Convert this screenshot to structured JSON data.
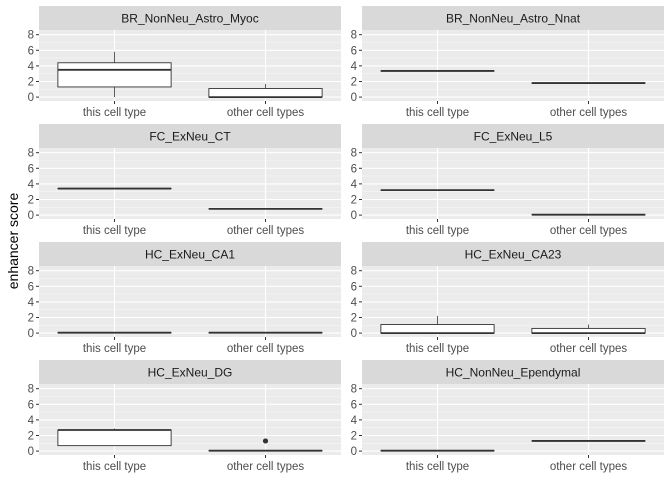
{
  "chart_data": {
    "type": "boxplot",
    "ylabel": "enhancer score",
    "xlabel": "",
    "categories": [
      "this cell type",
      "other cell types"
    ],
    "ylim": [
      -0.5,
      8.6
    ],
    "yticks": [
      0,
      2,
      4,
      6,
      8
    ],
    "grid": true,
    "facet_layout": "4 rows x 2 columns",
    "panels": [
      {
        "title": "BR_NonNeu_Astro_Myoc",
        "boxes": [
          {
            "category": "this cell type",
            "min": 0.0,
            "q1": 1.3,
            "median": 3.5,
            "q3": 4.4,
            "max": 5.8,
            "outliers": []
          },
          {
            "category": "other cell types",
            "min": 0.0,
            "q1": 0.0,
            "median": 0.0,
            "q3": 1.1,
            "max": 1.7,
            "outliers": []
          }
        ]
      },
      {
        "title": "BR_NonNeu_Astro_Nnat",
        "boxes": [
          {
            "category": "this cell type",
            "min": 3.35,
            "q1": 3.35,
            "median": 3.35,
            "q3": 3.35,
            "max": 3.35,
            "outliers": []
          },
          {
            "category": "other cell types",
            "min": 1.8,
            "q1": 1.8,
            "median": 1.8,
            "q3": 1.8,
            "max": 1.8,
            "outliers": []
          }
        ]
      },
      {
        "title": "FC_ExNeu_CT",
        "boxes": [
          {
            "category": "this cell type",
            "min": 3.4,
            "q1": 3.4,
            "median": 3.4,
            "q3": 3.4,
            "max": 3.4,
            "outliers": []
          },
          {
            "category": "other cell types",
            "min": 0.8,
            "q1": 0.8,
            "median": 0.8,
            "q3": 0.8,
            "max": 0.8,
            "outliers": []
          }
        ]
      },
      {
        "title": "FC_ExNeu_L5",
        "boxes": [
          {
            "category": "this cell type",
            "min": 3.2,
            "q1": 3.2,
            "median": 3.2,
            "q3": 3.2,
            "max": 3.2,
            "outliers": []
          },
          {
            "category": "other cell types",
            "min": 0.05,
            "q1": 0.05,
            "median": 0.05,
            "q3": 0.05,
            "max": 0.05,
            "outliers": []
          }
        ]
      },
      {
        "title": "HC_ExNeu_CA1",
        "boxes": [
          {
            "category": "this cell type",
            "min": 0.05,
            "q1": 0.05,
            "median": 0.05,
            "q3": 0.05,
            "max": 0.05,
            "outliers": []
          },
          {
            "category": "other cell types",
            "min": 0.05,
            "q1": 0.05,
            "median": 0.05,
            "q3": 0.05,
            "max": 0.05,
            "outliers": []
          }
        ]
      },
      {
        "title": "HC_ExNeu_CA23",
        "boxes": [
          {
            "category": "this cell type",
            "min": 0.0,
            "q1": 0.0,
            "median": 0.0,
            "q3": 1.1,
            "max": 2.2,
            "outliers": []
          },
          {
            "category": "other cell types",
            "min": 0.0,
            "q1": 0.0,
            "median": 0.0,
            "q3": 0.6,
            "max": 1.1,
            "outliers": []
          }
        ]
      },
      {
        "title": "HC_ExNeu_DG",
        "boxes": [
          {
            "category": "this cell type",
            "min": 0.7,
            "q1": 0.7,
            "median": 2.7,
            "q3": 2.7,
            "max": 2.9,
            "outliers": []
          },
          {
            "category": "other cell types",
            "min": 0.05,
            "q1": 0.05,
            "median": 0.05,
            "q3": 0.05,
            "max": 0.05,
            "outliers": [
              1.3
            ]
          }
        ]
      },
      {
        "title": "HC_NonNeu_Ependymal",
        "boxes": [
          {
            "category": "this cell type",
            "min": 0.05,
            "q1": 0.05,
            "median": 0.05,
            "q3": 0.05,
            "max": 0.05,
            "outliers": []
          },
          {
            "category": "other cell types",
            "min": 1.3,
            "q1": 1.3,
            "median": 1.3,
            "q3": 1.3,
            "max": 1.3,
            "outliers": []
          }
        ]
      }
    ]
  },
  "colors": {
    "panel_bg": "#ebebeb",
    "strip_bg": "#d9d9d9",
    "grid_major": "#ffffff",
    "box_fill": "#ffffff",
    "box_stroke": "#333333",
    "tick_text": "#4d4d4d"
  }
}
